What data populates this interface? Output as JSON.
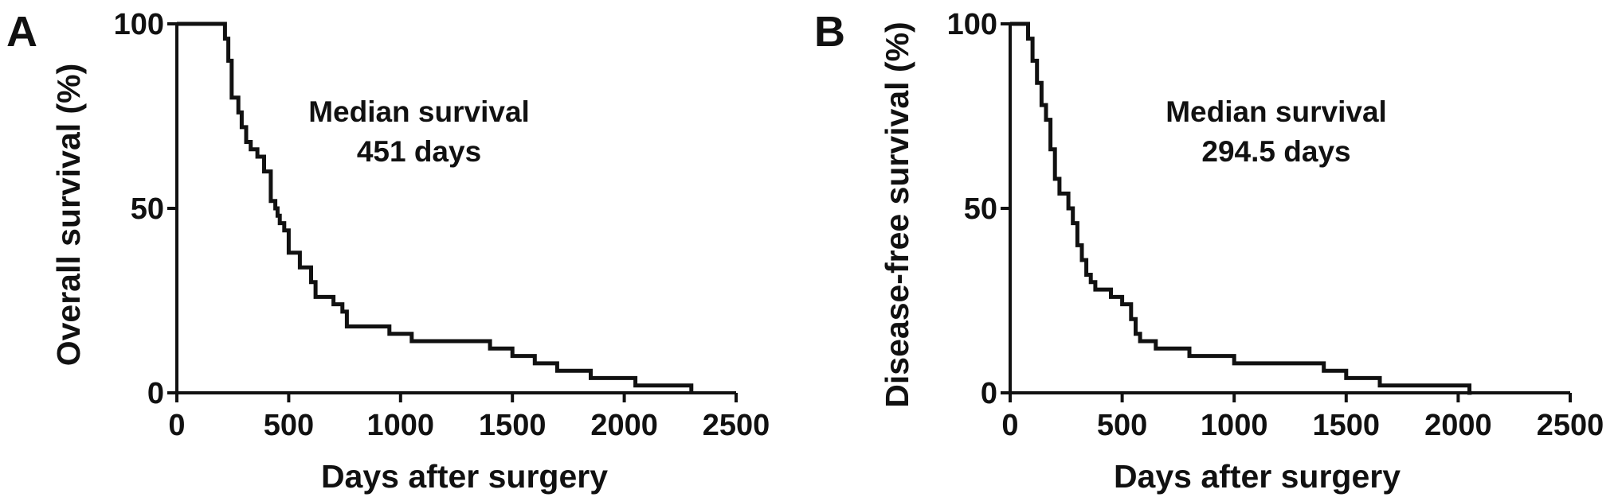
{
  "chart_data": [
    {
      "type": "line",
      "panel_label": "A",
      "xlabel": "Days after surgery",
      "ylabel": "Overall survival (%)",
      "xlim": [
        0,
        2500
      ],
      "ylim": [
        0,
        100
      ],
      "xticks": [
        0,
        500,
        1000,
        1500,
        2000,
        2500
      ],
      "yticks": [
        0,
        50,
        100
      ],
      "annotation": [
        "Median survival",
        "451 days"
      ],
      "series": [
        {
          "style": "step",
          "x": [
            0,
            200,
            215,
            230,
            245,
            260,
            275,
            290,
            310,
            330,
            360,
            390,
            420,
            440,
            450,
            460,
            480,
            500,
            520,
            550,
            600,
            620,
            650,
            700,
            740,
            760,
            780,
            800,
            950,
            1000,
            1050,
            1100,
            1300,
            1400,
            1450,
            1500,
            1600,
            1650,
            1700,
            1800,
            1850,
            1900,
            2050,
            2100,
            2150,
            2200,
            2300
          ],
          "y": [
            100,
            100,
            96,
            90,
            80,
            80,
            76,
            72,
            68,
            66,
            64,
            60,
            52,
            50,
            48,
            46,
            44,
            38,
            38,
            34,
            30,
            26,
            26,
            24,
            22,
            18,
            18,
            18,
            16,
            16,
            14,
            14,
            14,
            12,
            12,
            10,
            8,
            8,
            6,
            6,
            4,
            4,
            2,
            2,
            2,
            2,
            0
          ]
        }
      ]
    },
    {
      "type": "line",
      "panel_label": "B",
      "xlabel": "Days after surgery",
      "ylabel": "Disease-free survival (%)",
      "xlim": [
        0,
        2500
      ],
      "ylim": [
        0,
        100
      ],
      "xticks": [
        0,
        500,
        1000,
        1500,
        2000,
        2500
      ],
      "yticks": [
        0,
        50,
        100
      ],
      "annotation": [
        "Median survival",
        "294.5 days"
      ],
      "series": [
        {
          "style": "step",
          "x": [
            0,
            50,
            80,
            100,
            120,
            140,
            160,
            180,
            200,
            220,
            240,
            260,
            280,
            300,
            320,
            340,
            360,
            380,
            400,
            450,
            500,
            540,
            560,
            580,
            600,
            650,
            700,
            800,
            1000,
            1350,
            1400,
            1450,
            1500,
            1600,
            1650,
            1700,
            2050,
            2060
          ],
          "y": [
            100,
            100,
            96,
            90,
            84,
            78,
            74,
            66,
            58,
            54,
            54,
            50,
            46,
            40,
            36,
            32,
            30,
            28,
            28,
            26,
            24,
            20,
            16,
            14,
            14,
            12,
            12,
            10,
            8,
            8,
            6,
            6,
            4,
            4,
            2,
            2,
            0,
            0
          ]
        }
      ]
    }
  ]
}
